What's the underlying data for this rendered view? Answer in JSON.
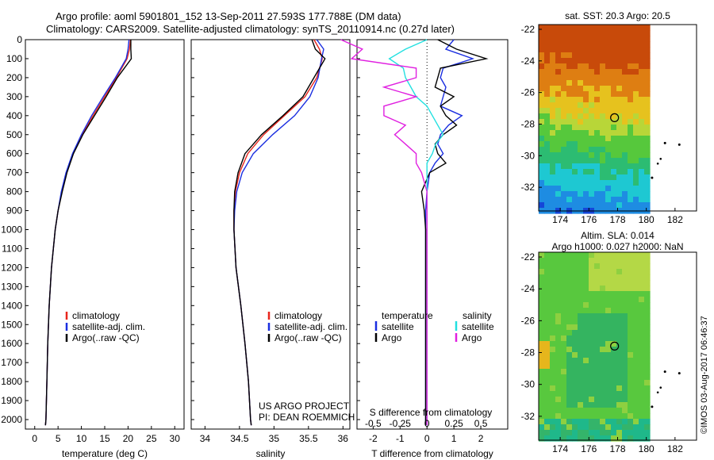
{
  "header": {
    "title_line1": "Argo profile: aoml 5901801_152 13-Sep-2011 27.593S 177.788E (DM data)",
    "title_line2": "Climatology: CARS2009. Satellite-adjusted climatology: synTS_20110914.nc (0.27d later)"
  },
  "colors": {
    "climatology": "#e8251c",
    "satellite": "#1a2ee0",
    "argo": "#000000",
    "salinity_sat": "#22e0e0",
    "salinity_argo": "#e020e0"
  },
  "chart_data": [
    {
      "type": "line",
      "name": "temperature-profile",
      "xlabel": "temperature (deg C)",
      "xlim": [
        -2,
        32
      ],
      "xticks": [
        0,
        5,
        10,
        15,
        20,
        25,
        30
      ],
      "ylim": [
        0,
        2050
      ],
      "yticks": [
        0,
        100,
        200,
        300,
        400,
        500,
        600,
        700,
        800,
        900,
        1000,
        1100,
        1200,
        1300,
        1400,
        1500,
        1600,
        1700,
        1800,
        1900,
        2000
      ],
      "y_reversed": true,
      "legend": [
        "climatology",
        "satellite-adj. clim.",
        "Argo(..raw -QC)"
      ],
      "depth": [
        0,
        50,
        100,
        200,
        300,
        400,
        500,
        600,
        700,
        800,
        900,
        1000,
        1200,
        1400,
        1600,
        1800,
        2000,
        2030
      ],
      "series": [
        {
          "name": "climatology",
          "values": [
            20.5,
            20.3,
            19.8,
            17.5,
            15.0,
            12.5,
            10.2,
            8.2,
            6.8,
            5.8,
            5.0,
            4.4,
            3.6,
            3.1,
            2.8,
            2.6,
            2.4,
            2.3
          ]
        },
        {
          "name": "satellite-adj. clim.",
          "values": [
            20.2,
            20.0,
            19.6,
            17.3,
            14.7,
            12.2,
            10.0,
            8.1,
            6.7,
            5.7,
            5.0,
            4.4,
            3.6,
            3.1,
            2.8,
            2.6,
            2.4,
            2.3
          ]
        },
        {
          "name": "Argo(..raw -QC)",
          "values": [
            20.6,
            20.6,
            20.7,
            17.7,
            15.3,
            12.8,
            10.3,
            8.3,
            6.9,
            5.9,
            5.0,
            4.4,
            3.6,
            3.1,
            2.8,
            2.6,
            2.4,
            2.3
          ]
        }
      ]
    },
    {
      "type": "line",
      "name": "salinity-profile",
      "xlabel": "salinity",
      "xlim": [
        33.8,
        36.1
      ],
      "xticks": [
        34,
        34.5,
        35,
        35.5,
        36
      ],
      "ylim": [
        0,
        2050
      ],
      "y_reversed": true,
      "legend": [
        "climatology",
        "satellite-adj. clim.",
        "Argo(..raw -QC)"
      ],
      "annotation": [
        "US ARGO PROJECT",
        "PI: DEAN ROEMMICH"
      ],
      "depth": [
        0,
        50,
        100,
        200,
        300,
        400,
        500,
        600,
        700,
        800,
        900,
        1000,
        1200,
        1400,
        1600,
        1800,
        2000,
        2030
      ],
      "series": [
        {
          "name": "climatology",
          "values": [
            35.58,
            35.66,
            35.7,
            35.62,
            35.45,
            35.15,
            34.85,
            34.62,
            34.5,
            34.44,
            34.42,
            34.42,
            34.45,
            34.52,
            34.58,
            34.63,
            34.66,
            34.67
          ]
        },
        {
          "name": "satellite-adj. clim.",
          "values": [
            35.62,
            35.72,
            35.69,
            35.64,
            35.52,
            35.3,
            34.98,
            34.7,
            34.54,
            34.46,
            34.43,
            34.42,
            34.45,
            34.52,
            34.58,
            34.63,
            34.66,
            34.67
          ]
        },
        {
          "name": "Argo(..raw -QC)",
          "values": [
            35.55,
            35.6,
            35.74,
            35.58,
            35.42,
            35.13,
            34.82,
            34.58,
            34.48,
            34.43,
            34.42,
            34.42,
            34.45,
            34.52,
            34.58,
            34.63,
            34.66,
            34.67
          ]
        }
      ]
    },
    {
      "type": "line",
      "name": "difference-profile",
      "xlabel": "T difference from climatology",
      "xlabel_top": "S difference from climatology",
      "xlim": [
        -2.6,
        3.0
      ],
      "xticks": [
        -2,
        -1,
        0,
        1,
        2
      ],
      "xticks_top": [
        {
          "value": -0.5,
          "label": "-0.5"
        },
        {
          "value": -0.25,
          "label": "-0.25"
        },
        {
          "value": 0,
          "label": "0"
        },
        {
          "value": 0.25,
          "label": "0.25"
        },
        {
          "value": 0.5,
          "label": "0.5"
        }
      ],
      "ylim": [
        0,
        2050
      ],
      "y_reversed": true,
      "legend_temperature": {
        "title": "temperature",
        "items": [
          "satellite",
          "Argo"
        ]
      },
      "legend_salinity": {
        "title": "salinity",
        "items": [
          "satellite",
          "Argo"
        ]
      },
      "depth": [
        0,
        50,
        100,
        150,
        200,
        250,
        300,
        350,
        400,
        450,
        500,
        550,
        600,
        650,
        700,
        800,
        900,
        1000,
        1200,
        1400,
        1600,
        1800,
        2030
      ],
      "series": [
        {
          "name": "temperature satellite",
          "values": [
            1.0,
            0.7,
            1.7,
            0.6,
            0.5,
            0.7,
            0.6,
            0.5,
            1.3,
            0.8,
            0.5,
            0.4,
            0.6,
            0.3,
            0.1,
            0.0,
            -0.05,
            -0.05,
            -0.05,
            -0.05,
            -0.05,
            -0.05,
            -0.05
          ]
        },
        {
          "name": "temperature Argo",
          "values": [
            0.4,
            1.1,
            2.2,
            0.5,
            0.4,
            0.3,
            1.0,
            0.5,
            0.7,
            1.1,
            0.6,
            0.3,
            0.4,
            0.7,
            0.1,
            -0.2,
            -0.1,
            -0.05,
            -0.05,
            -0.05,
            -0.05,
            -0.05,
            -0.05
          ]
        },
        {
          "name": "salinity satellite",
          "values": [
            0.0,
            -0.2,
            -0.35,
            -0.22,
            -0.2,
            -0.15,
            -0.1,
            0.0,
            0.05,
            0.1,
            0.15,
            0.08,
            0.05,
            0.0,
            0.0,
            0.0,
            0.0,
            0.0,
            0.0,
            0.0,
            0.0,
            0.0,
            0.0
          ]
        },
        {
          "name": "salinity Argo",
          "values": [
            -0.8,
            -0.6,
            -0.7,
            -0.1,
            -0.1,
            -0.4,
            -0.1,
            -0.4,
            -0.4,
            -0.2,
            -0.3,
            -0.2,
            -0.1,
            -0.1,
            -0.05,
            0.0,
            0.0,
            0.0,
            0.0,
            0.0,
            0.0,
            0.0,
            0.0
          ]
        }
      ]
    },
    {
      "type": "heatmap",
      "name": "sst-map",
      "title": "sat. SST: 20.3  Argo: 20.5",
      "xlim": [
        172.5,
        183.5
      ],
      "ylim": [
        -33.5,
        -21.7
      ],
      "xticks": [
        174,
        176,
        178,
        180,
        182
      ],
      "yticks": [
        -22,
        -24,
        -26,
        -28,
        -30,
        -32
      ],
      "marker": {
        "lon": 177.788,
        "lat": -27.593
      }
    },
    {
      "type": "heatmap",
      "name": "sla-map",
      "title_line1": "Altim. SLA: 0.014",
      "title_line2": "Argo h1000: 0.027 h2000: NaN",
      "xlim": [
        172.5,
        183.5
      ],
      "ylim": [
        -33.5,
        -21.7
      ],
      "xticks": [
        174,
        176,
        178,
        180,
        182
      ],
      "yticks": [
        -22,
        -24,
        -26,
        -28,
        -30,
        -32
      ],
      "marker": {
        "lon": 177.788,
        "lat": -27.593
      }
    }
  ],
  "footer": {
    "imos_stamp": "©IMOS 03-Aug-2017 06:46:37"
  }
}
